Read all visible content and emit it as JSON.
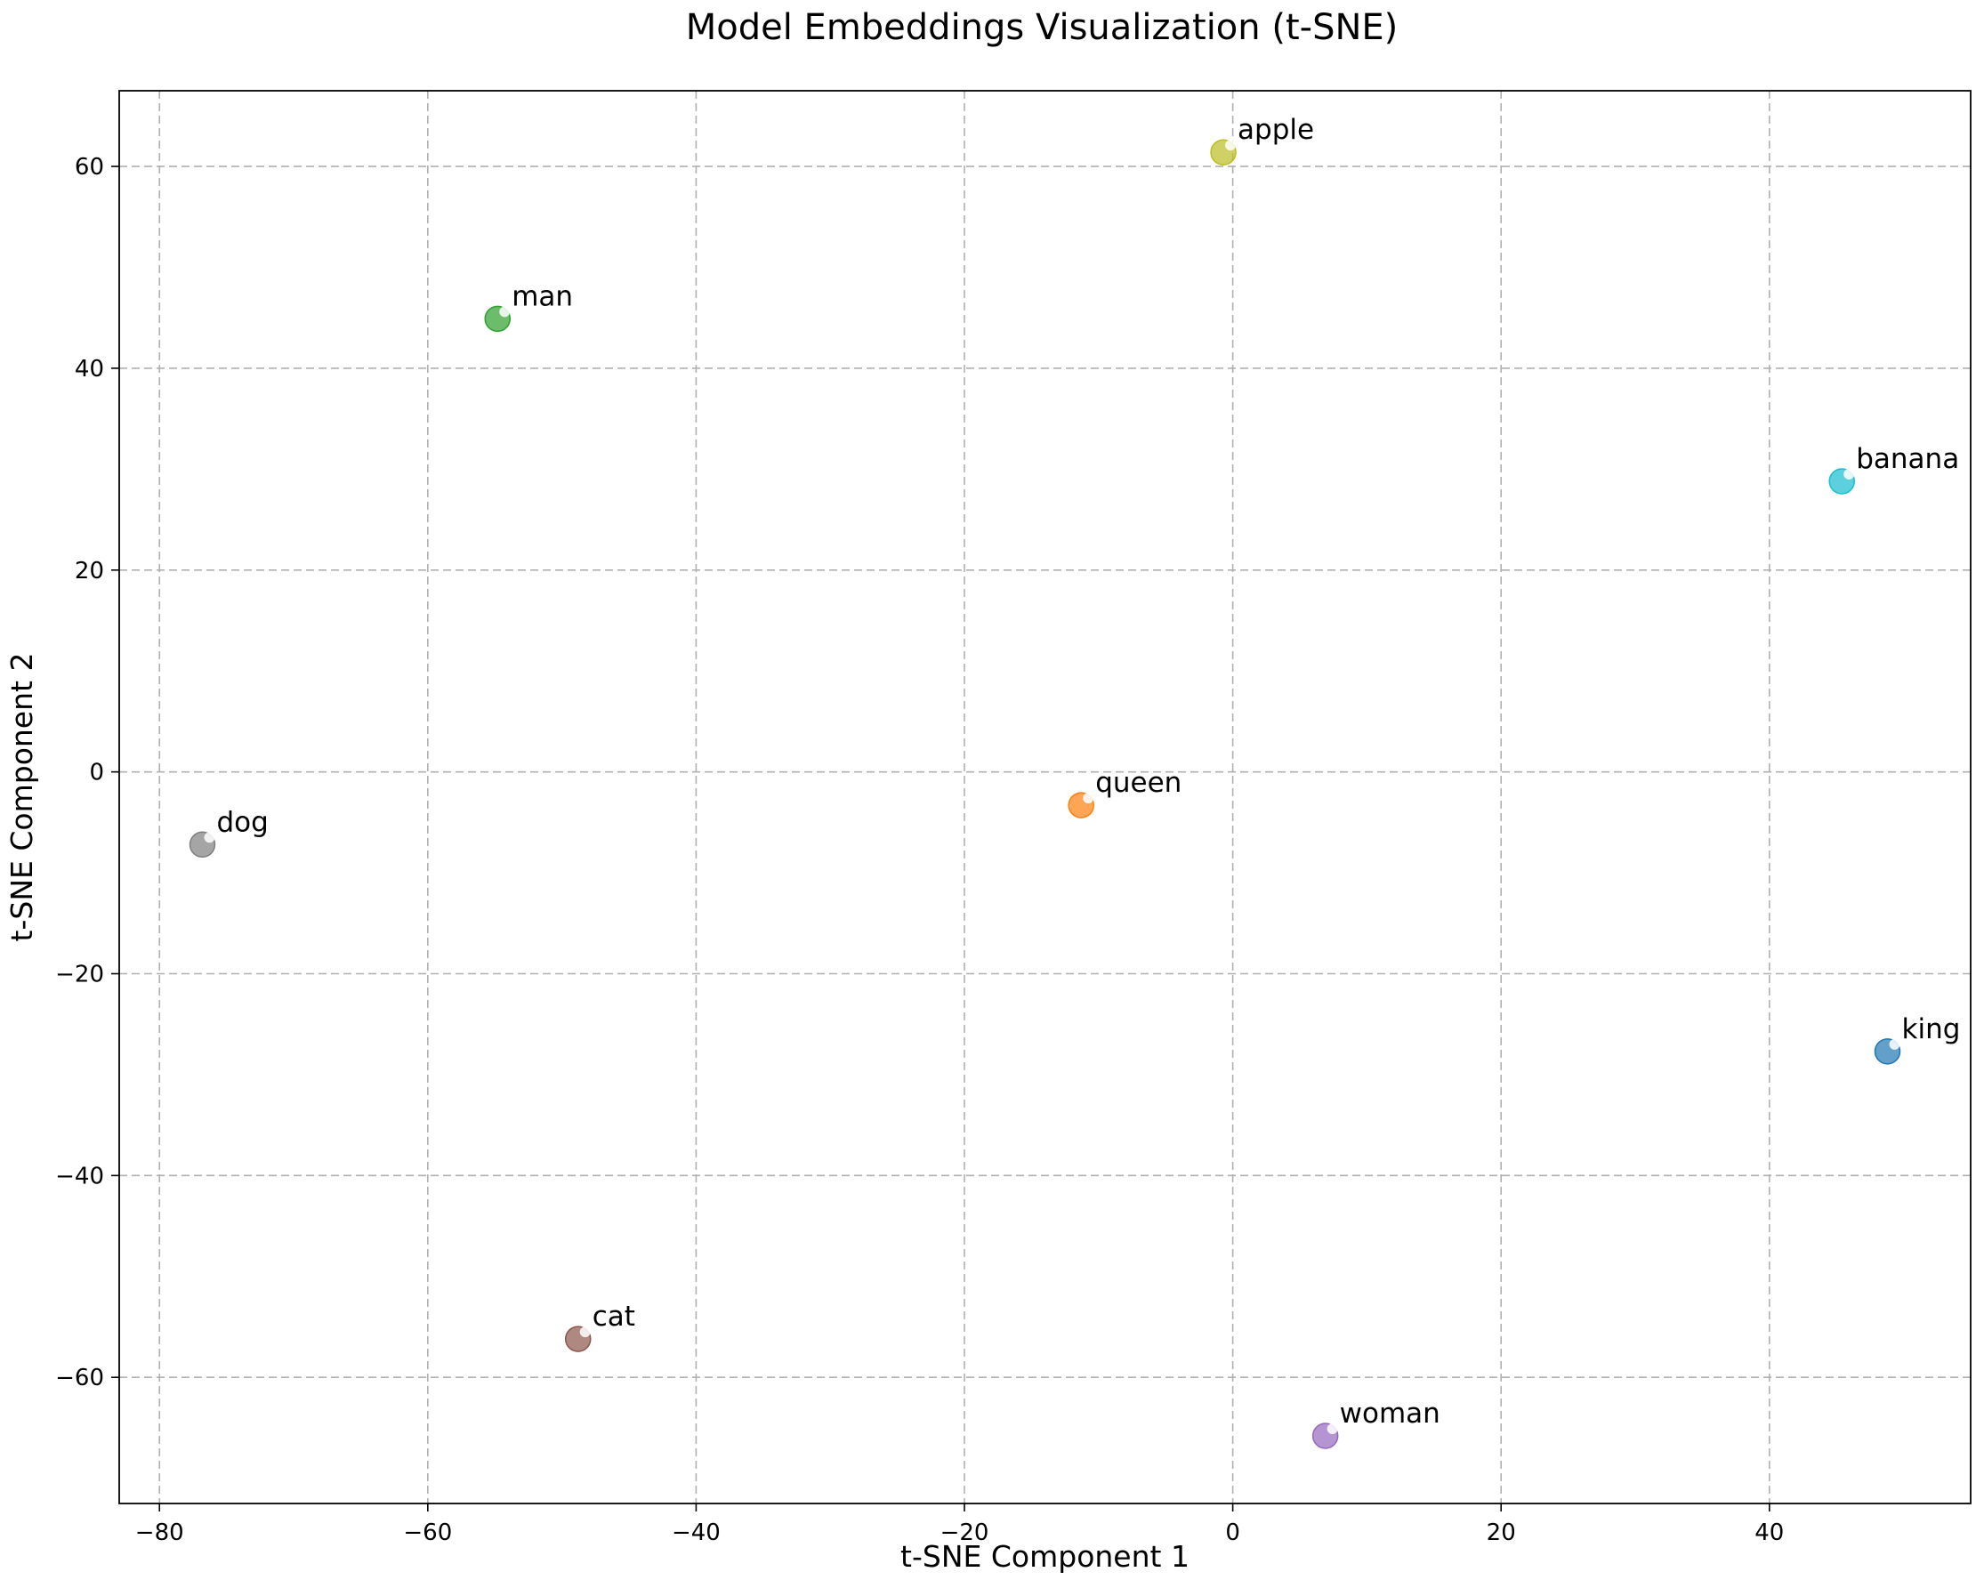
{
  "chart_data": {
    "type": "scatter",
    "title": "Model Embeddings Visualization (t-SNE)",
    "xlabel": "t-SNE Component 1",
    "ylabel": "t-SNE Component 2",
    "xlim": [
      -83,
      55
    ],
    "ylim": [
      -72.5,
      67.5
    ],
    "xticks": [
      -80,
      -60,
      -40,
      -20,
      0,
      20,
      40
    ],
    "yticks": [
      -60,
      -40,
      -20,
      0,
      20,
      40,
      60
    ],
    "tick_labels_x": [
      "−80",
      "−60",
      "−40",
      "−20",
      "0",
      "20",
      "40"
    ],
    "tick_labels_y": [
      "−60",
      "−40",
      "−20",
      "0",
      "20",
      "40",
      "60"
    ],
    "grid": true,
    "points": [
      {
        "label": "king",
        "x": 48.8,
        "y": -27.7,
        "color": "#1f77b4"
      },
      {
        "label": "queen",
        "x": -11.3,
        "y": -3.3,
        "color": "#ff7f0e"
      },
      {
        "label": "man",
        "x": -54.8,
        "y": 44.9,
        "color": "#2ca02c"
      },
      {
        "label": "woman",
        "x": 6.9,
        "y": -65.8,
        "color": "#9467bd"
      },
      {
        "label": "cat",
        "x": -48.8,
        "y": -56.2,
        "color": "#8c564b"
      },
      {
        "label": "dog",
        "x": -76.8,
        "y": -7.2,
        "color": "#7f7f7f"
      },
      {
        "label": "apple",
        "x": -0.7,
        "y": 61.4,
        "color": "#bcbd22"
      },
      {
        "label": "banana",
        "x": 45.4,
        "y": 28.8,
        "color": "#17becf"
      }
    ]
  }
}
